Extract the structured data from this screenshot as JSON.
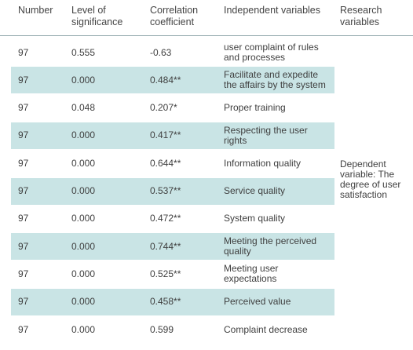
{
  "headers": {
    "number": "Number",
    "significance": "Level of significance",
    "correlation": "Correlation coefficient",
    "independent": "Independent variables",
    "research": "Research variables"
  },
  "rows": [
    {
      "number": "97",
      "significance": "0.555",
      "correlation": "-0.63",
      "variable": "user complaint of rules and processes"
    },
    {
      "number": "97",
      "significance": "0.000",
      "correlation": "0.484**",
      "variable": "Facilitate and expedite the affairs by the system"
    },
    {
      "number": "97",
      "significance": "0.048",
      "correlation": "0.207*",
      "variable": "Proper training"
    },
    {
      "number": "97",
      "significance": "0.000",
      "correlation": "0.417**",
      "variable": "Respecting the user rights"
    },
    {
      "number": "97",
      "significance": "0.000",
      "correlation": "0.644**",
      "variable": "Information quality"
    },
    {
      "number": "97",
      "significance": "0.000",
      "correlation": "0.537**",
      "variable": "Service quality"
    },
    {
      "number": "97",
      "significance": "0.000",
      "correlation": "0.472**",
      "variable": "System quality"
    },
    {
      "number": "97",
      "significance": "0.000",
      "correlation": "0.744**",
      "variable": "Meeting the perceived quality"
    },
    {
      "number": "97",
      "significance": "0.000",
      "correlation": "0.525**",
      "variable": "Meeting user expectations"
    },
    {
      "number": "97",
      "significance": "0.000",
      "correlation": "0.458**",
      "variable": "Perceived value"
    },
    {
      "number": "97",
      "significance": "0.000",
      "correlation": "0.599",
      "variable": "Complaint decrease"
    }
  ],
  "research_variable": "Dependent variable: The degree of user satisfaction",
  "colors": {
    "row_shade": "#c9e4e5",
    "header_rule": "#8fa6aa"
  }
}
